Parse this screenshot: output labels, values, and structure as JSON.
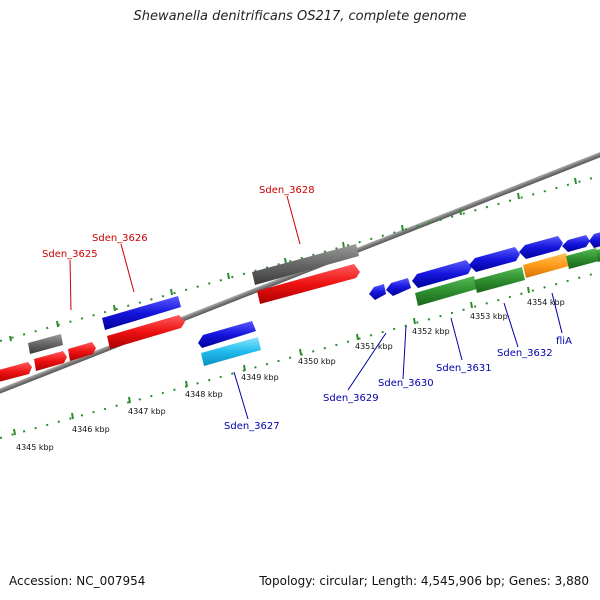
{
  "title": "Shewanella denitrificans OS217, complete genome",
  "footer": {
    "accession": "Accession: NC_007954",
    "stats": "Topology: circular; Length: 4,545,906 bp; Genes: 3,880"
  },
  "colors": {
    "tick": "#2e8b2e",
    "label_red": "#cc0000",
    "label_blue": "#0000aa",
    "axis": "#8a8a8a"
  },
  "kbp_ticks": [
    "4345 kbp",
    "4346 kbp",
    "4347 kbp",
    "4348 kbp",
    "4349 kbp",
    "4350 kbp",
    "4351 kbp",
    "4352 kbp",
    "4353 kbp",
    "4354 kbp"
  ],
  "gene_labels": {
    "sden_3625": "Sden_3625",
    "sden_3626": "Sden_3626",
    "sden_3627": "Sden_3627",
    "sden_3628": "Sden_3628",
    "sden_3629": "Sden_3629",
    "sden_3630": "Sden_3630",
    "sden_3631": "Sden_3631",
    "sden_3632": "Sden_3632",
    "flia": "fliA"
  }
}
